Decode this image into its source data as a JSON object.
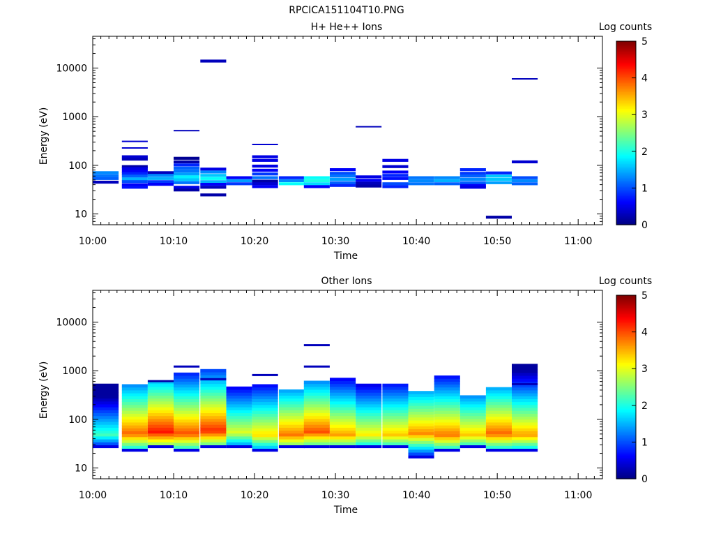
{
  "figure": {
    "title": "RPCICA151104T10.PNG"
  },
  "colorbar": {
    "label": "Log counts",
    "ticks": [
      "0",
      "1",
      "2",
      "3",
      "4",
      "5"
    ],
    "range": [
      0,
      5
    ],
    "colormap": [
      "#00007f",
      "#0000ff",
      "#007fff",
      "#00ffff",
      "#7fff7f",
      "#ffff00",
      "#ff7f00",
      "#ff0000",
      "#7f0000"
    ]
  },
  "chart_data": [
    {
      "type": "heatmap",
      "title": "H+ He++ Ions",
      "xlabel": "Time",
      "ylabel": "Energy (eV)",
      "x_ticks": [
        "10:00",
        "10:10",
        "10:20",
        "10:30",
        "10:40",
        "10:50",
        "11:00"
      ],
      "y_ticks": [
        "10",
        "100",
        "1000",
        "10000"
      ],
      "y_scale": "log",
      "xlim_minutes": [
        0,
        63
      ],
      "ylim": [
        6,
        45000
      ],
      "bin_width_minutes": 3.2,
      "cells": [
        [
          0,
          66,
          1.3
        ],
        [
          0,
          57,
          1.2
        ],
        [
          0,
          50,
          1.1
        ],
        [
          0,
          42,
          0.3
        ],
        [
          3.6,
          300,
          0.4
        ],
        [
          3.6,
          220,
          0.4
        ],
        [
          3.6,
          140,
          0.4
        ],
        [
          3.6,
          125,
          0.3
        ],
        [
          3.6,
          88,
          0.2
        ],
        [
          3.6,
          80,
          0.5
        ],
        [
          3.6,
          70,
          0.6
        ],
        [
          3.6,
          63,
          0.8
        ],
        [
          3.6,
          56,
          1.1
        ],
        [
          3.6,
          49,
          1.5
        ],
        [
          3.6,
          43,
          1.0
        ],
        [
          3.6,
          37,
          0.6
        ],
        [
          3.6,
          33,
          0.7
        ],
        [
          6.8,
          66,
          0.3
        ],
        [
          6.8,
          58,
          1.3
        ],
        [
          6.8,
          50,
          1.5
        ],
        [
          6.8,
          43,
          0.9
        ],
        [
          6.8,
          38,
          0.6
        ],
        [
          10,
          500,
          0.3
        ],
        [
          10,
          130,
          0.1
        ],
        [
          10,
          110,
          0.2
        ],
        [
          10,
          95,
          0.8
        ],
        [
          10,
          82,
          1.1
        ],
        [
          10,
          71,
          1.2
        ],
        [
          10,
          62,
          1.4
        ],
        [
          10,
          54,
          1.8
        ],
        [
          10,
          47,
          1.6
        ],
        [
          10,
          41,
          1.2
        ],
        [
          10,
          33,
          0.5
        ],
        [
          10,
          29,
          0.2
        ],
        [
          13.3,
          13000,
          0.3
        ],
        [
          13.3,
          78,
          0.5
        ],
        [
          13.3,
          68,
          1.3
        ],
        [
          13.3,
          58,
          1.6
        ],
        [
          13.3,
          50,
          1.9
        ],
        [
          13.3,
          43,
          1.5
        ],
        [
          13.3,
          38,
          0.6
        ],
        [
          13.3,
          33,
          0.3
        ],
        [
          13.3,
          23,
          0.2
        ],
        [
          16.5,
          52,
          0.6
        ],
        [
          16.5,
          45,
          1.4
        ],
        [
          16.5,
          39,
          0.9
        ],
        [
          19.7,
          260,
          0.4
        ],
        [
          19.7,
          140,
          0.5
        ],
        [
          19.7,
          118,
          0.5
        ],
        [
          19.7,
          90,
          0.5
        ],
        [
          19.7,
          74,
          0.6
        ],
        [
          19.7,
          62,
          0.9
        ],
        [
          19.7,
          52,
          1.2
        ],
        [
          19.7,
          44,
          0.2
        ],
        [
          19.7,
          39,
          0.4
        ],
        [
          19.7,
          34,
          0.6
        ],
        [
          23,
          52,
          0.8
        ],
        [
          23,
          45,
          1.3
        ],
        [
          23,
          39,
          1.9
        ],
        [
          26.1,
          52,
          1.9
        ],
        [
          26.1,
          45,
          2.0
        ],
        [
          26.1,
          39,
          1.7
        ],
        [
          26.1,
          34,
          0.6
        ],
        [
          29.3,
          76,
          0.6
        ],
        [
          29.3,
          64,
          1.0
        ],
        [
          29.3,
          56,
          1.2
        ],
        [
          29.3,
          48,
          1.4
        ],
        [
          29.3,
          41,
          1.1
        ],
        [
          29.3,
          36,
          0.8
        ],
        [
          32.5,
          600,
          0.3
        ],
        [
          32.5,
          54,
          0.5
        ],
        [
          32.5,
          46,
          0.6
        ],
        [
          32.5,
          40,
          0.3
        ],
        [
          32.5,
          35,
          0.2
        ],
        [
          35.8,
          118,
          0.5
        ],
        [
          35.8,
          88,
          0.4
        ],
        [
          35.8,
          68,
          0.6
        ],
        [
          35.8,
          58,
          0.8
        ],
        [
          35.8,
          50,
          0.7
        ],
        [
          35.8,
          39,
          1.0
        ],
        [
          35.8,
          34,
          0.8
        ],
        [
          39,
          52,
          1.2
        ],
        [
          39,
          45,
          1.3
        ],
        [
          39,
          39,
          1.2
        ],
        [
          42.2,
          52,
          1.3
        ],
        [
          42.2,
          45,
          1.5
        ],
        [
          42.2,
          39,
          1.1
        ],
        [
          45.4,
          76,
          0.8
        ],
        [
          45.4,
          64,
          0.9
        ],
        [
          45.4,
          56,
          1.1
        ],
        [
          45.4,
          48,
          1.3
        ],
        [
          45.4,
          41,
          1.1
        ],
        [
          45.4,
          36,
          0.6
        ],
        [
          45.4,
          33,
          0.5
        ],
        [
          48.6,
          65,
          0.8
        ],
        [
          48.6,
          56,
          1.6
        ],
        [
          48.6,
          48,
          1.6
        ],
        [
          48.6,
          41,
          1.4
        ],
        [
          48.6,
          8,
          0.2
        ],
        [
          51.8,
          5800,
          0.3
        ],
        [
          51.8,
          110,
          0.4
        ],
        [
          51.8,
          52,
          1.0
        ],
        [
          51.8,
          45,
          1.3
        ],
        [
          51.8,
          39,
          1.1
        ]
      ]
    },
    {
      "type": "heatmap",
      "title": "Other Ions",
      "xlabel": "Time",
      "ylabel": "Energy (eV)",
      "x_ticks": [
        "10:00",
        "10:10",
        "10:20",
        "10:30",
        "10:40",
        "10:50",
        "11:00"
      ],
      "y_ticks": [
        "10",
        "100",
        "1000",
        "10000"
      ],
      "y_scale": "log",
      "xlim_minutes": [
        0,
        63
      ],
      "ylim": [
        6,
        45000
      ],
      "bin_width_minutes": 3.2,
      "column_profiles": [
        {
          "t": 0,
          "top": 540,
          "bottom": 26,
          "peak": 2.2,
          "peak_e": 45,
          "extras": []
        },
        {
          "t": 3.6,
          "top": 480,
          "bottom": 22,
          "peak": 3.9,
          "peak_e": 48,
          "extras": []
        },
        {
          "t": 6.8,
          "top": 600,
          "bottom": 26,
          "peak": 4.3,
          "peak_e": 52,
          "extras": [
            [
              600,
              0.2
            ]
          ]
        },
        {
          "t": 10,
          "top": 860,
          "bottom": 22,
          "peak": 4.0,
          "peak_e": 48,
          "extras": [
            [
              1200,
              0.3
            ]
          ]
        },
        {
          "t": 13.3,
          "top": 1000,
          "bottom": 26,
          "peak": 4.2,
          "peak_e": 55,
          "extras": [
            [
              660,
              0.3
            ]
          ]
        },
        {
          "t": 16.5,
          "top": 470,
          "bottom": 26,
          "peak": 3.0,
          "peak_e": 50,
          "extras": []
        },
        {
          "t": 19.7,
          "top": 470,
          "bottom": 22,
          "peak": 3.3,
          "peak_e": 45,
          "extras": [
            [
              800,
              0.3
            ]
          ]
        },
        {
          "t": 23,
          "top": 380,
          "bottom": 26,
          "peak": 3.8,
          "peak_e": 45,
          "extras": []
        },
        {
          "t": 26.1,
          "top": 600,
          "bottom": 26,
          "peak": 4.0,
          "peak_e": 52,
          "extras": [
            [
              3300,
              0.3
            ],
            [
              1200,
              0.3
            ]
          ]
        },
        {
          "t": 29.3,
          "top": 700,
          "bottom": 26,
          "peak": 3.6,
          "peak_e": 45,
          "extras": []
        },
        {
          "t": 32.5,
          "top": 540,
          "bottom": 26,
          "peak": 3.2,
          "peak_e": 45,
          "extras": []
        },
        {
          "t": 35.8,
          "top": 520,
          "bottom": 26,
          "peak": 3.4,
          "peak_e": 45,
          "extras": []
        },
        {
          "t": 39,
          "top": 370,
          "bottom": 16,
          "peak": 3.7,
          "peak_e": 48,
          "extras": []
        },
        {
          "t": 42.2,
          "top": 720,
          "bottom": 22,
          "peak": 3.8,
          "peak_e": 45,
          "extras": []
        },
        {
          "t": 45.4,
          "top": 310,
          "bottom": 26,
          "peak": 3.4,
          "peak_e": 45,
          "extras": []
        },
        {
          "t": 48.6,
          "top": 440,
          "bottom": 22,
          "peak": 3.9,
          "peak_e": 48,
          "extras": []
        },
        {
          "t": 51.8,
          "top": 1250,
          "bottom": 22,
          "peak": 3.6,
          "peak_e": 45,
          "extras": [
            [
              520,
              0.3
            ]
          ]
        }
      ]
    }
  ]
}
